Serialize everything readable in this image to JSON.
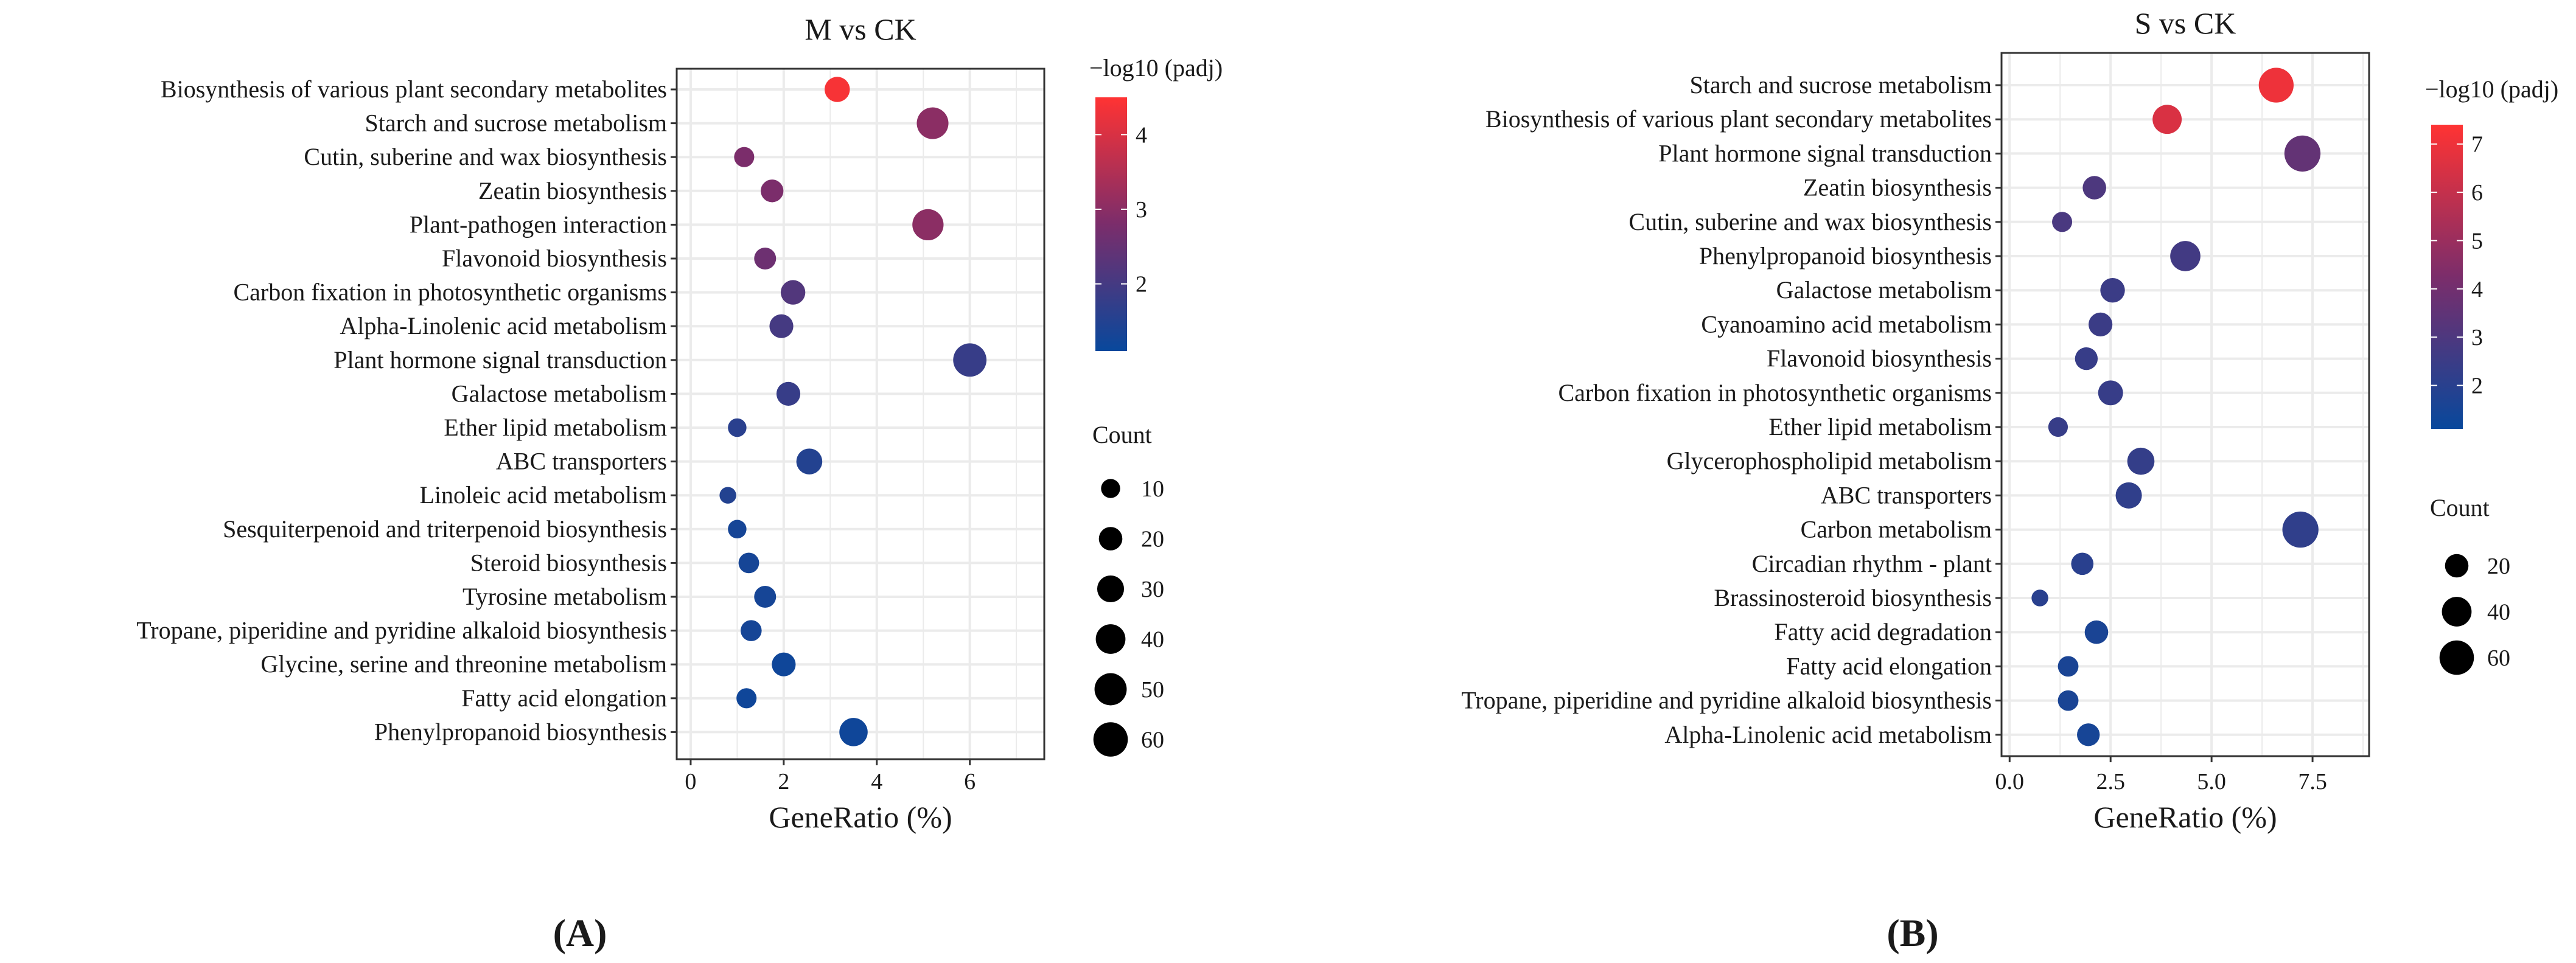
{
  "colors": {
    "low": "#08489c",
    "mid": "#7b2d6b",
    "high": "#ff3333",
    "grid": "#ebebeb",
    "border": "#333333",
    "dot_legend": "#000000"
  },
  "chart_data": [
    {
      "panel_label": "(A)",
      "type": "scatter",
      "title": "M vs CK",
      "xlabel": "GeneRatio (%)",
      "ylabel": "",
      "xlim": [
        -0.3,
        7.6
      ],
      "xticks": [
        0,
        2,
        4,
        6
      ],
      "xtick_labels": [
        "0",
        "2",
        "4",
        "6"
      ],
      "categories": [
        "Biosynthesis of various plant secondary metabolites",
        "Starch and sucrose metabolism",
        "Cutin, suberine and wax biosynthesis",
        "Zeatin biosynthesis",
        "Plant-pathogen interaction",
        "Flavonoid biosynthesis",
        "Carbon fixation in photosynthetic organisms",
        "Alpha-Linolenic acid metabolism",
        "Plant hormone signal transduction",
        "Galactose metabolism",
        "Ether lipid metabolism",
        "ABC transporters",
        "Linoleic acid metabolism",
        "Sesquiterpenoid and triterpenoid biosynthesis",
        "Steroid biosynthesis",
        "Tyrosine metabolism",
        "Tropane, piperidine and pyridine alkaloid biosynthesis",
        "Glycine, serine and threonine metabolism",
        "Fatty acid elongation",
        "Phenylpropanoid biosynthesis"
      ],
      "gene_ratio": [
        3.15,
        5.2,
        1.15,
        1.75,
        5.1,
        1.6,
        2.2,
        1.95,
        6.0,
        2.1,
        1.0,
        2.55,
        0.8,
        1.0,
        1.25,
        1.6,
        1.3,
        2.0,
        1.2,
        3.5
      ],
      "count": [
        25,
        48,
        12,
        18,
        46,
        16,
        23,
        21,
        55,
        21,
        9,
        27,
        6,
        9,
        13,
        16,
        14,
        21,
        12,
        35
      ],
      "padj_neglog10": [
        4.4,
        3.0,
        2.8,
        2.8,
        3.0,
        2.6,
        2.2,
        2.0,
        1.8,
        1.8,
        1.6,
        1.5,
        1.5,
        1.3,
        1.3,
        1.3,
        1.3,
        1.2,
        1.2,
        1.2
      ],
      "color_legend": {
        "title": "−log10 (padj)",
        "range": [
          1.1,
          4.5
        ],
        "ticks": [
          2,
          3,
          4
        ],
        "tick_labels": [
          "2",
          "3",
          "4"
        ]
      },
      "size_legend": {
        "title": "Count",
        "values": [
          10,
          20,
          30,
          40,
          50,
          60
        ],
        "labels": [
          "10",
          "20",
          "30",
          "40",
          "50",
          "60"
        ]
      }
    },
    {
      "panel_label": "(B)",
      "type": "scatter",
      "title": "S vs CK",
      "xlabel": "GeneRatio (%)",
      "ylabel": "",
      "xlim": [
        -0.2,
        8.9
      ],
      "xticks": [
        0,
        2.5,
        5,
        7.5
      ],
      "xtick_labels": [
        "0.0",
        "2.5",
        "5.0",
        "7.5"
      ],
      "categories": [
        "Starch and sucrose metabolism",
        "Biosynthesis of various plant secondary metabolites",
        "Plant hormone signal transduction",
        "Zeatin biosynthesis",
        "Cutin, suberine and wax biosynthesis",
        "Phenylpropanoid biosynthesis",
        "Galactose metabolism",
        "Cyanoamino acid metabolism",
        "Flavonoid biosynthesis",
        "Carbon fixation in photosynthetic organisms",
        "Ether lipid metabolism",
        "Glycerophospholipid metabolism",
        "ABC transporters",
        "Carbon metabolism",
        "Circadian rhythm - plant",
        "Brassinosteroid biosynthesis",
        "Fatty acid degradation",
        "Fatty acid elongation",
        "Tropane, piperidine and pyridine alkaloid biosynthesis",
        "Alpha-Linolenic acid metabolism"
      ],
      "gene_ratio": [
        6.6,
        3.9,
        7.25,
        2.1,
        1.3,
        4.35,
        2.55,
        2.25,
        1.9,
        2.5,
        1.2,
        3.25,
        2.95,
        7.2,
        1.8,
        0.75,
        2.15,
        1.45,
        1.45,
        1.95
      ],
      "count": [
        62,
        38,
        68,
        20,
        12,
        42,
        23,
        21,
        18,
        24,
        11,
        31,
        28,
        68,
        17,
        6,
        20,
        13,
        13,
        18
      ],
      "padj_neglog10": [
        7.0,
        6.5,
        3.6,
        3.0,
        2.9,
        2.7,
        2.5,
        2.5,
        2.4,
        2.4,
        2.4,
        2.3,
        2.2,
        2.2,
        2.0,
        2.0,
        1.6,
        1.6,
        1.6,
        1.5
      ],
      "color_legend": {
        "title": "−log10 (padj)",
        "range": [
          1.1,
          7.4
        ],
        "ticks": [
          2,
          3,
          4,
          5,
          6,
          7
        ],
        "tick_labels": [
          "2",
          "3",
          "4",
          "5",
          "6",
          "7"
        ]
      },
      "size_legend": {
        "title": "Count",
        "values": [
          20,
          40,
          60
        ],
        "labels": [
          "20",
          "40",
          "60"
        ]
      }
    }
  ]
}
